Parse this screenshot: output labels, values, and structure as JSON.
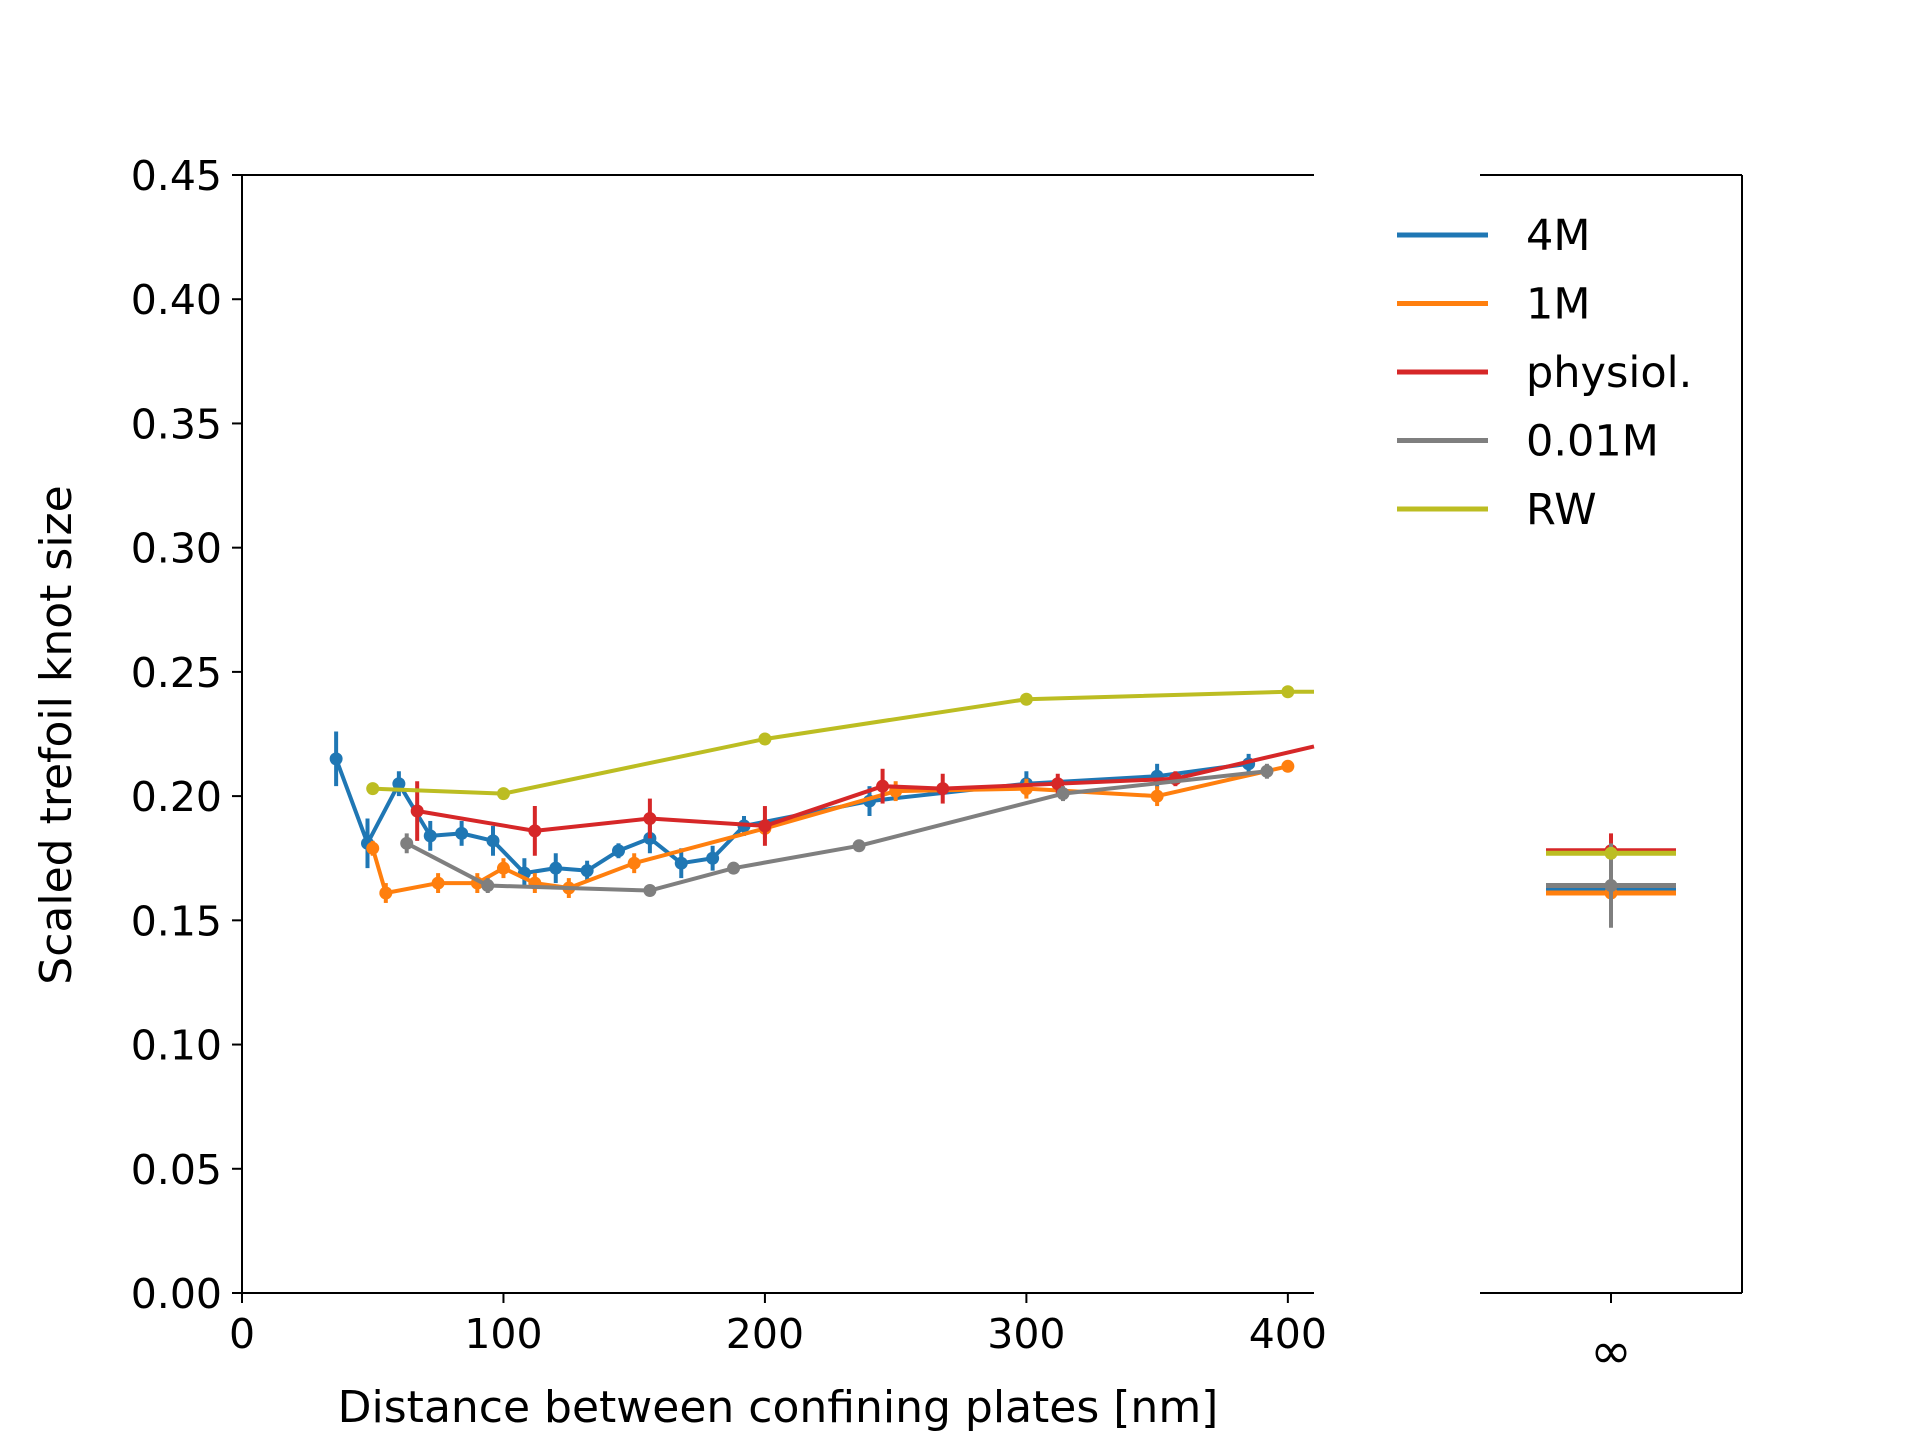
{
  "chart_data": {
    "type": "line",
    "xlabel": "Distance between confining plates [nm]",
    "ylabel": "Scaled trefoil knot size",
    "xlim": [
      0,
      410
    ],
    "ylim": [
      0,
      0.45
    ],
    "x_ticks": [
      0,
      100,
      200,
      300,
      400
    ],
    "y_ticks": [
      0.0,
      0.05,
      0.1,
      0.15,
      0.2,
      0.25,
      0.3,
      0.35,
      0.4,
      0.45
    ],
    "y_tick_labels": [
      "0.00",
      "0.05",
      "0.10",
      "0.15",
      "0.20",
      "0.25",
      "0.30",
      "0.35",
      "0.40",
      "0.45"
    ],
    "x_tick_labels": [
      "0",
      "100",
      "200",
      "300",
      "400"
    ],
    "inf_tick_label": "∞",
    "legend_position": "right",
    "series": [
      {
        "name": "4M",
        "color": "#1f77b4",
        "x": [
          36,
          48,
          60,
          72,
          84,
          96,
          108,
          120,
          132,
          144,
          156,
          168,
          180,
          192,
          240,
          300,
          350,
          385
        ],
        "y": [
          0.215,
          0.181,
          0.205,
          0.184,
          0.185,
          0.182,
          0.169,
          0.171,
          0.17,
          0.178,
          0.183,
          0.173,
          0.175,
          0.188,
          0.198,
          0.205,
          0.208,
          0.213
        ],
        "err": [
          0.011,
          0.01,
          0.005,
          0.006,
          0.005,
          0.006,
          0.006,
          0.006,
          0.004,
          0.003,
          0.006,
          0.006,
          0.005,
          0.004,
          0.006,
          0.005,
          0.005,
          0.004
        ],
        "inf": 0.163,
        "inf_err": 0.007
      },
      {
        "name": "1M",
        "color": "#ff7f0e",
        "x": [
          50,
          55,
          75,
          90,
          100,
          112,
          125,
          150,
          200,
          250,
          300,
          350,
          400
        ],
        "y": [
          0.179,
          0.161,
          0.165,
          0.165,
          0.171,
          0.165,
          0.163,
          0.173,
          0.187,
          0.202,
          0.203,
          0.2,
          0.212
        ],
        "err": [
          0.003,
          0.004,
          0.004,
          0.004,
          0.004,
          0.004,
          0.004,
          0.004,
          0.004,
          0.004,
          0.004,
          0.004,
          0.002
        ],
        "inf": 0.161,
        "inf_err": 0.002
      },
      {
        "name": "physiol.",
        "color": "#d62728",
        "x": [
          67,
          112,
          156,
          200,
          245,
          268,
          312,
          357,
          410
        ],
        "y": [
          0.194,
          0.186,
          0.191,
          0.188,
          0.204,
          0.203,
          0.205,
          0.207,
          0.22
        ],
        "err": [
          0.012,
          0.01,
          0.008,
          0.008,
          0.007,
          0.006,
          0.004,
          0.003,
          0.0
        ],
        "inf": 0.178,
        "inf_err": 0.007
      },
      {
        "name": "0.01M",
        "color": "#7f7f7f",
        "x": [
          63,
          94,
          156,
          188,
          236,
          314,
          392
        ],
        "y": [
          0.181,
          0.164,
          0.162,
          0.171,
          0.18,
          0.201,
          0.21
        ],
        "err": [
          0.004,
          0.003,
          0.002,
          0.002,
          0.002,
          0.003,
          0.003
        ],
        "inf": 0.164,
        "inf_err": 0.017
      },
      {
        "name": "RW",
        "color": "#bcbd22",
        "x": [
          50,
          100,
          200,
          300,
          400,
          410
        ],
        "y": [
          0.203,
          0.201,
          0.223,
          0.239,
          0.242,
          0.242
        ],
        "err": [
          0.001,
          0.001,
          0.001,
          0.001,
          0.001,
          0.0
        ],
        "inf": 0.177,
        "inf_err": 0.002
      }
    ]
  }
}
